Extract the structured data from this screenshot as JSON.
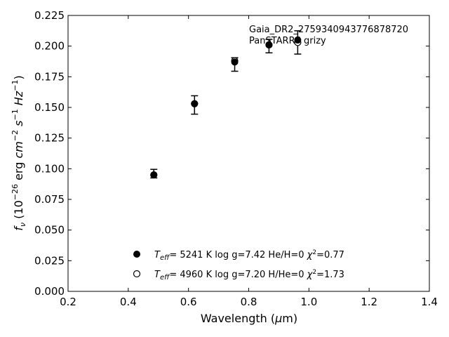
{
  "chart_data": {
    "type": "scatter",
    "xlabel": "Wavelength (μm)",
    "ylabel": "f_ν (10^-26 erg cm^-2 s^-1 Hz^-1)",
    "xlim": [
      0.2,
      1.4
    ],
    "ylim": [
      0.0,
      0.225
    ],
    "xticks": [
      "0.2",
      "0.4",
      "0.6",
      "0.8",
      "1.0",
      "1.2",
      "1.4"
    ],
    "yticks": [
      "0.000",
      "0.025",
      "0.050",
      "0.075",
      "0.100",
      "0.125",
      "0.150",
      "0.175",
      "0.200",
      "0.225"
    ],
    "grid": false,
    "annotation": [
      "Gaia_DR2_2759340943776878720",
      "PanSTARRS grizy"
    ],
    "observed": {
      "x": [
        0.4849,
        0.6201,
        0.7535,
        0.8674,
        0.9628
      ],
      "y": [
        0.096,
        0.152,
        0.185,
        0.2,
        0.203
      ],
      "err": [
        0.0035,
        0.0075,
        0.0055,
        0.0055,
        0.0095
      ]
    },
    "series": [
      {
        "name": "T_eff= 5241 K log g=7.42 He/H=0 χ²=0.77",
        "marker": "filled-circle",
        "x": [
          0.4849,
          0.6201,
          0.7535,
          0.8674,
          0.9628
        ],
        "y": [
          0.095,
          0.153,
          0.187,
          0.201,
          0.205
        ]
      },
      {
        "name": "T_eff= 4960 K log g=7.20 H/He=0 χ²=1.73",
        "marker": "open-circle",
        "x": [
          0.4849,
          0.6201,
          0.7535,
          0.8674,
          0.9628
        ],
        "y": [
          0.095,
          0.153,
          0.188,
          0.201,
          0.203
        ]
      }
    ],
    "legend": [
      {
        "teff": "5241 K",
        "rest": "log g=7.42  He/H=0",
        "chi": "=0.77"
      },
      {
        "teff": "4960 K",
        "rest": "log g=7.20  H/He=0",
        "chi": "=1.73"
      }
    ],
    "legend_position": "lower-center"
  }
}
